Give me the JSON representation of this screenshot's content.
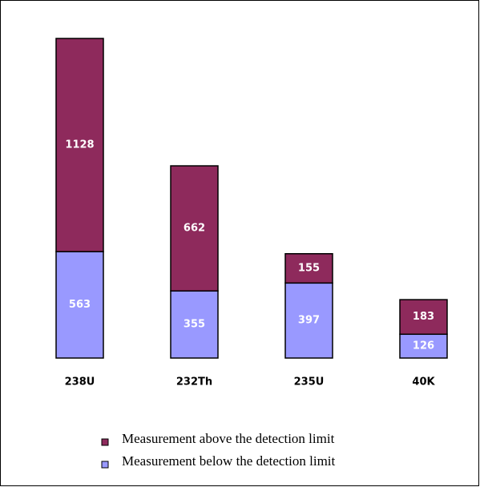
{
  "chart_data": {
    "type": "bar",
    "stacked": true,
    "categories": [
      "238U",
      "232Th",
      "235U",
      "40K"
    ],
    "series": [
      {
        "name": "Measurement below the detection limit",
        "color": "#9999ff",
        "values": [
          563,
          355,
          397,
          126
        ]
      },
      {
        "name": "Measurement above the detection limit",
        "color": "#8e2a5c",
        "values": [
          1128,
          662,
          155,
          183
        ]
      }
    ]
  }
}
